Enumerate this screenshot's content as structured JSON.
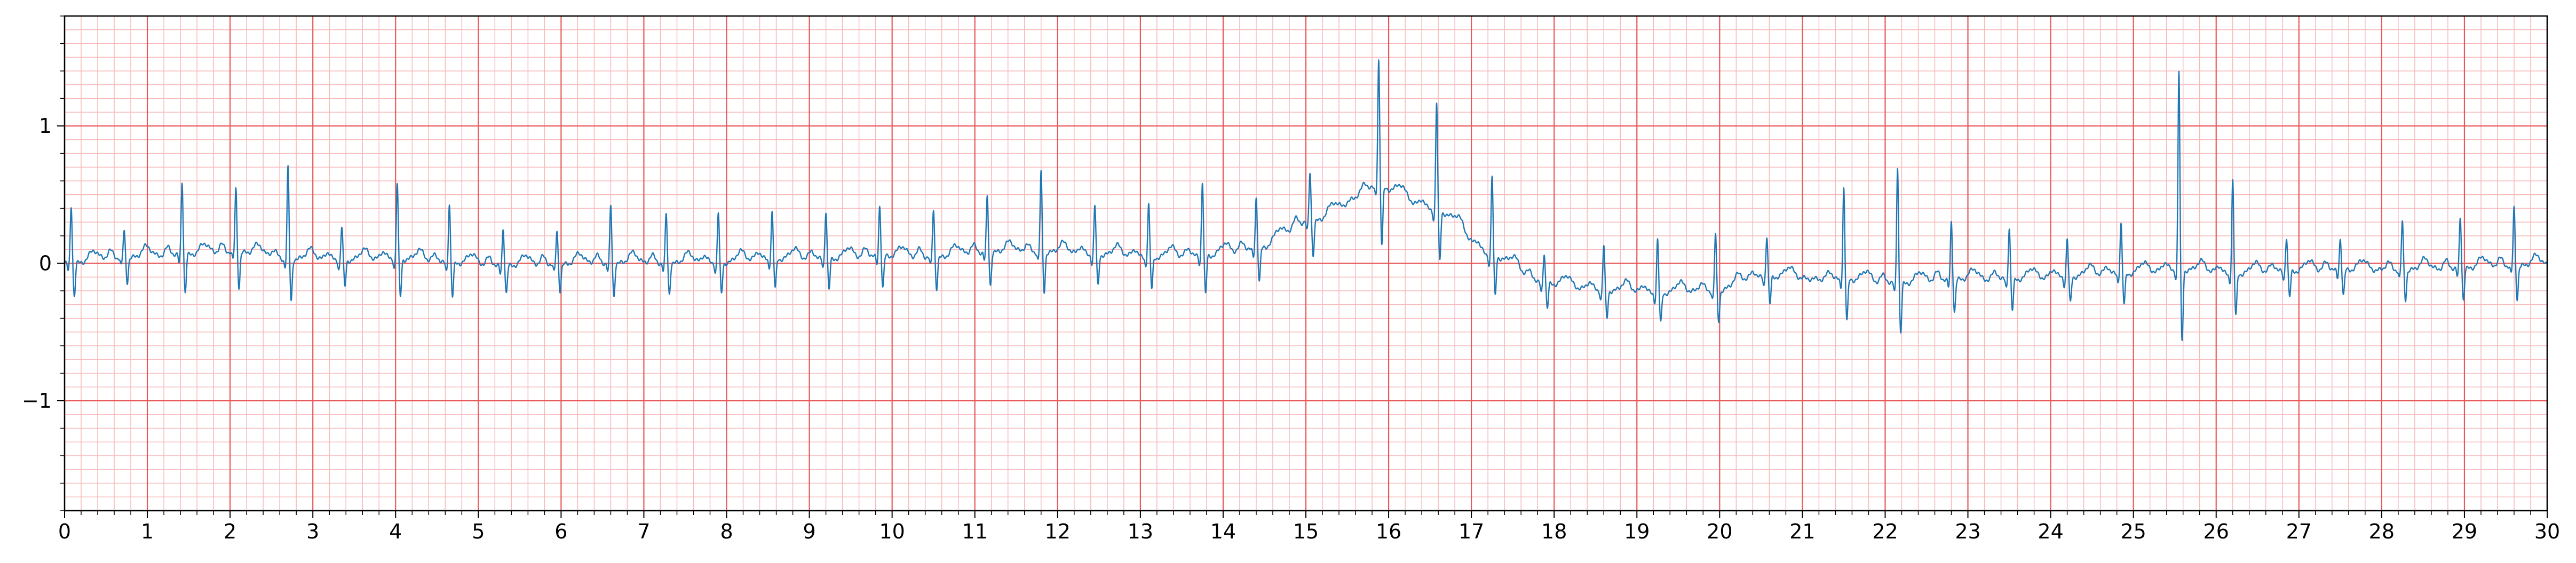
{
  "chart_data": {
    "type": "line",
    "title": "",
    "xlabel": "",
    "ylabel": "",
    "xlim": [
      0,
      30
    ],
    "ylim": [
      -1.8,
      1.8
    ],
    "x_ticks": [
      0,
      1,
      2,
      3,
      4,
      5,
      6,
      7,
      8,
      9,
      10,
      11,
      12,
      13,
      14,
      15,
      16,
      17,
      18,
      19,
      20,
      21,
      22,
      23,
      24,
      25,
      26,
      27,
      28,
      29,
      30
    ],
    "x_tick_labels": [
      "0",
      "1",
      "2",
      "3",
      "4",
      "5",
      "6",
      "7",
      "8",
      "9",
      "10",
      "11",
      "12",
      "13",
      "14",
      "15",
      "16",
      "17",
      "18",
      "19",
      "20",
      "21",
      "22",
      "23",
      "24",
      "25",
      "26",
      "27",
      "28",
      "29",
      "30"
    ],
    "y_ticks": [
      -1,
      0,
      1
    ],
    "y_tick_labels": [
      "−1",
      "0",
      "1"
    ],
    "grid": {
      "major": true,
      "minor": true,
      "major_x_step": 1,
      "major_y_step": 1,
      "minor_x_step": 0.2,
      "minor_y_step": 0.1,
      "major_color": "#e8585a",
      "minor_color": "#f7b9ba"
    },
    "series_color": "#1f77b4",
    "beats": [
      {
        "t": 0.08,
        "amp": 0.42,
        "base": 0.0
      },
      {
        "t": 0.72,
        "amp": 0.2,
        "base": 0.04
      },
      {
        "t": 1.42,
        "amp": 0.55,
        "base": 0.06
      },
      {
        "t": 2.07,
        "amp": 0.48,
        "base": 0.08
      },
      {
        "t": 2.7,
        "amp": 0.67,
        "base": 0.03
      },
      {
        "t": 3.35,
        "amp": 0.25,
        "base": 0.02
      },
      {
        "t": 4.02,
        "amp": 0.56,
        "base": 0.03
      },
      {
        "t": 4.65,
        "amp": 0.44,
        "base": 0.0
      },
      {
        "t": 5.3,
        "amp": 0.27,
        "base": -0.02
      },
      {
        "t": 5.95,
        "amp": 0.24,
        "base": -0.01
      },
      {
        "t": 6.6,
        "amp": 0.42,
        "base": 0.0
      },
      {
        "t": 7.27,
        "amp": 0.36,
        "base": 0.0
      },
      {
        "t": 7.9,
        "amp": 0.37,
        "base": 0.0
      },
      {
        "t": 8.55,
        "amp": 0.35,
        "base": 0.03
      },
      {
        "t": 9.2,
        "amp": 0.36,
        "base": 0.03
      },
      {
        "t": 9.85,
        "amp": 0.38,
        "base": 0.05
      },
      {
        "t": 10.5,
        "amp": 0.36,
        "base": 0.04
      },
      {
        "t": 11.15,
        "amp": 0.42,
        "base": 0.08
      },
      {
        "t": 11.8,
        "amp": 0.6,
        "base": 0.08
      },
      {
        "t": 12.45,
        "amp": 0.37,
        "base": 0.06
      },
      {
        "t": 13.1,
        "amp": 0.4,
        "base": 0.04
      },
      {
        "t": 13.75,
        "amp": 0.56,
        "base": 0.05
      },
      {
        "t": 14.4,
        "amp": 0.4,
        "base": 0.1
      },
      {
        "t": 15.05,
        "amp": 0.43,
        "base": 0.3
      },
      {
        "t": 15.88,
        "amp": 1.05,
        "base": 0.55
      },
      {
        "t": 16.58,
        "amp": 0.87,
        "base": 0.38
      },
      {
        "t": 17.25,
        "amp": 0.6,
        "base": 0.05
      },
      {
        "t": 17.88,
        "amp": 0.2,
        "base": -0.15
      },
      {
        "t": 18.6,
        "amp": 0.29,
        "base": -0.2
      },
      {
        "t": 19.25,
        "amp": 0.35,
        "base": -0.22
      },
      {
        "t": 19.95,
        "amp": 0.37,
        "base": -0.2
      },
      {
        "t": 20.57,
        "amp": 0.28,
        "base": -0.1
      },
      {
        "t": 21.5,
        "amp": 0.65,
        "base": -0.12
      },
      {
        "t": 22.15,
        "amp": 0.83,
        "base": -0.15
      },
      {
        "t": 22.8,
        "amp": 0.4,
        "base": -0.12
      },
      {
        "t": 23.5,
        "amp": 0.36,
        "base": -0.12
      },
      {
        "t": 24.2,
        "amp": 0.26,
        "base": -0.1
      },
      {
        "t": 24.85,
        "amp": 0.36,
        "base": -0.08
      },
      {
        "t": 25.55,
        "amp": 1.44,
        "base": -0.05
      },
      {
        "t": 26.2,
        "amp": 0.67,
        "base": -0.08
      },
      {
        "t": 26.85,
        "amp": 0.24,
        "base": -0.06
      },
      {
        "t": 27.5,
        "amp": 0.22,
        "base": -0.05
      },
      {
        "t": 28.25,
        "amp": 0.34,
        "base": -0.05
      },
      {
        "t": 28.95,
        "amp": 0.37,
        "base": -0.04
      },
      {
        "t": 29.6,
        "amp": 0.42,
        "base": -0.02
      }
    ]
  }
}
